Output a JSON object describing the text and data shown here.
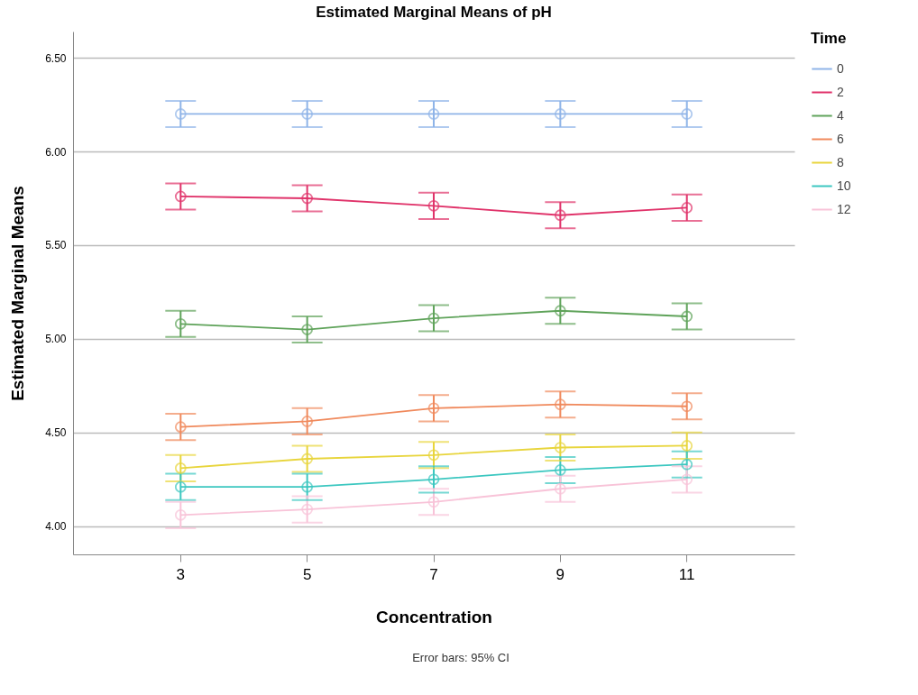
{
  "chart_data": {
    "type": "line",
    "title": "Estimated Marginal Means of pH",
    "xlabel": "Concentration",
    "ylabel": "Estimated Marginal Means",
    "legend_title": "Time",
    "categories": [
      "3",
      "5",
      "7",
      "9",
      "11"
    ],
    "series": [
      {
        "name": "0",
        "color": "#8fb4e8",
        "values": [
          6.2,
          6.2,
          6.2,
          6.2,
          6.2
        ],
        "errors": [
          0.07,
          0.07,
          0.07,
          0.07,
          0.07
        ]
      },
      {
        "name": "2",
        "color": "#e0336a",
        "values": [
          5.76,
          5.75,
          5.71,
          5.66,
          5.7
        ],
        "errors": [
          0.07,
          0.07,
          0.07,
          0.07,
          0.07
        ]
      },
      {
        "name": "4",
        "color": "#5fa35a",
        "values": [
          5.08,
          5.05,
          5.11,
          5.15,
          5.12
        ],
        "errors": [
          0.07,
          0.07,
          0.07,
          0.07,
          0.07
        ]
      },
      {
        "name": "6",
        "color": "#f08a5d",
        "values": [
          4.53,
          4.56,
          4.63,
          4.65,
          4.64
        ],
        "errors": [
          0.07,
          0.07,
          0.07,
          0.07,
          0.07
        ]
      },
      {
        "name": "8",
        "color": "#e8d53c",
        "values": [
          4.31,
          4.36,
          4.38,
          4.42,
          4.43
        ],
        "errors": [
          0.07,
          0.07,
          0.07,
          0.07,
          0.07
        ]
      },
      {
        "name": "10",
        "color": "#3cc7c0",
        "values": [
          4.21,
          4.21,
          4.25,
          4.3,
          4.33
        ],
        "errors": [
          0.07,
          0.07,
          0.07,
          0.07,
          0.07
        ]
      },
      {
        "name": "12",
        "color": "#f8c3d8",
        "values": [
          4.06,
          4.09,
          4.13,
          4.2,
          4.25
        ],
        "errors": [
          0.07,
          0.07,
          0.07,
          0.07,
          0.07
        ]
      }
    ],
    "ylim": [
      3.85,
      6.64
    ],
    "yticks": [
      {
        "value": 4.0,
        "label": "4.00"
      },
      {
        "value": 4.5,
        "label": "4.50"
      },
      {
        "value": 5.0,
        "label": "5.00"
      },
      {
        "value": 5.5,
        "label": "5.50"
      },
      {
        "value": 6.0,
        "label": "6.00"
      },
      {
        "value": 6.5,
        "label": "6.50"
      }
    ],
    "grid": "y",
    "legend": "top right",
    "marker": "circle",
    "line_style": "solid",
    "annotations": [
      "Error bars: 95% CI"
    ]
  }
}
